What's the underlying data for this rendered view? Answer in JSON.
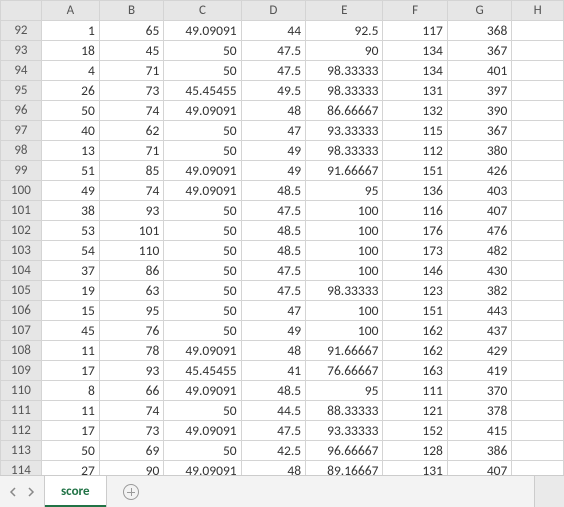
{
  "grid": {
    "type": "table",
    "background_color": "#ffffff",
    "gridline_color": "#d4d4d4",
    "header_bg": "#e6e6e6",
    "font_family": "Calibri",
    "cell_fontsize": 13.5,
    "header_fontsize": 13,
    "text_align": "right",
    "columns": [
      "A",
      "B",
      "C",
      "D",
      "E",
      "F",
      "G",
      "H"
    ],
    "row_start": 92,
    "row_end": 114,
    "rows": [
      {
        "n": 92,
        "A": "1",
        "B": "65",
        "C": "49.09091",
        "D": "44",
        "E": "92.5",
        "F": "117",
        "G": "368",
        "H": ""
      },
      {
        "n": 93,
        "A": "18",
        "B": "45",
        "C": "50",
        "D": "47.5",
        "E": "90",
        "F": "134",
        "G": "367",
        "H": ""
      },
      {
        "n": 94,
        "A": "4",
        "B": "71",
        "C": "50",
        "D": "47.5",
        "E": "98.33333",
        "F": "134",
        "G": "401",
        "H": ""
      },
      {
        "n": 95,
        "A": "26",
        "B": "73",
        "C": "45.45455",
        "D": "49.5",
        "E": "98.33333",
        "F": "131",
        "G": "397",
        "H": ""
      },
      {
        "n": 96,
        "A": "50",
        "B": "74",
        "C": "49.09091",
        "D": "48",
        "E": "86.66667",
        "F": "132",
        "G": "390",
        "H": ""
      },
      {
        "n": 97,
        "A": "40",
        "B": "62",
        "C": "50",
        "D": "47",
        "E": "93.33333",
        "F": "115",
        "G": "367",
        "H": ""
      },
      {
        "n": 98,
        "A": "13",
        "B": "71",
        "C": "50",
        "D": "49",
        "E": "98.33333",
        "F": "112",
        "G": "380",
        "H": ""
      },
      {
        "n": 99,
        "A": "51",
        "B": "85",
        "C": "49.09091",
        "D": "49",
        "E": "91.66667",
        "F": "151",
        "G": "426",
        "H": ""
      },
      {
        "n": 100,
        "A": "49",
        "B": "74",
        "C": "49.09091",
        "D": "48.5",
        "E": "95",
        "F": "136",
        "G": "403",
        "H": ""
      },
      {
        "n": 101,
        "A": "38",
        "B": "93",
        "C": "50",
        "D": "47.5",
        "E": "100",
        "F": "116",
        "G": "407",
        "H": ""
      },
      {
        "n": 102,
        "A": "53",
        "B": "101",
        "C": "50",
        "D": "48.5",
        "E": "100",
        "F": "176",
        "G": "476",
        "H": ""
      },
      {
        "n": 103,
        "A": "54",
        "B": "110",
        "C": "50",
        "D": "48.5",
        "E": "100",
        "F": "173",
        "G": "482",
        "H": ""
      },
      {
        "n": 104,
        "A": "37",
        "B": "86",
        "C": "50",
        "D": "47.5",
        "E": "100",
        "F": "146",
        "G": "430",
        "H": ""
      },
      {
        "n": 105,
        "A": "19",
        "B": "63",
        "C": "50",
        "D": "47.5",
        "E": "98.33333",
        "F": "123",
        "G": "382",
        "H": ""
      },
      {
        "n": 106,
        "A": "15",
        "B": "95",
        "C": "50",
        "D": "47",
        "E": "100",
        "F": "151",
        "G": "443",
        "H": ""
      },
      {
        "n": 107,
        "A": "45",
        "B": "76",
        "C": "50",
        "D": "49",
        "E": "100",
        "F": "162",
        "G": "437",
        "H": ""
      },
      {
        "n": 108,
        "A": "11",
        "B": "78",
        "C": "49.09091",
        "D": "48",
        "E": "91.66667",
        "F": "162",
        "G": "429",
        "H": ""
      },
      {
        "n": 109,
        "A": "17",
        "B": "93",
        "C": "45.45455",
        "D": "41",
        "E": "76.66667",
        "F": "163",
        "G": "419",
        "H": ""
      },
      {
        "n": 110,
        "A": "8",
        "B": "66",
        "C": "49.09091",
        "D": "48.5",
        "E": "95",
        "F": "111",
        "G": "370",
        "H": ""
      },
      {
        "n": 111,
        "A": "11",
        "B": "74",
        "C": "50",
        "D": "44.5",
        "E": "88.33333",
        "F": "121",
        "G": "378",
        "H": ""
      },
      {
        "n": 112,
        "A": "17",
        "B": "73",
        "C": "49.09091",
        "D": "47.5",
        "E": "93.33333",
        "F": "152",
        "G": "415",
        "H": ""
      },
      {
        "n": 113,
        "A": "50",
        "B": "69",
        "C": "50",
        "D": "42.5",
        "E": "96.66667",
        "F": "128",
        "G": "386",
        "H": ""
      },
      {
        "n": 114,
        "A": "27",
        "B": "90",
        "C": "49.09091",
        "D": "48",
        "E": "89.16667",
        "F": "131",
        "G": "407",
        "H": ""
      }
    ]
  },
  "tabs": {
    "active_tab_label": "score",
    "active_color": "#217346",
    "bar_bg": "#f3f3f3",
    "border_color": "#cccccc"
  }
}
